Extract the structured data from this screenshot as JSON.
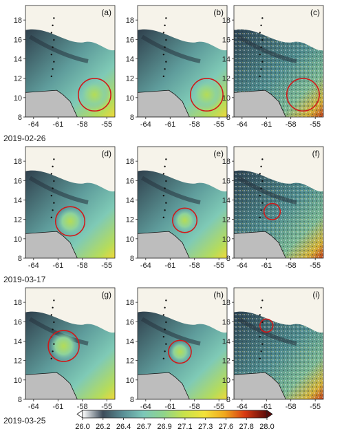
{
  "figure": {
    "x_ticks": [
      "-64",
      "-61",
      "-58",
      "-55"
    ],
    "y_ticks": [
      "18",
      "16",
      "14",
      "12",
      "10",
      "8"
    ],
    "dates": [
      "2019-02-26",
      "2019-03-17",
      "2019-03-25"
    ],
    "colorbar": {
      "ticks": [
        "26.0",
        "26.2",
        "26.4",
        "26.7",
        "26.9",
        "27.1",
        "27.3",
        "27.6",
        "27.8",
        "28.0"
      ],
      "colors": [
        "#ffffff",
        "#3d4c5a",
        "#5a8f96",
        "#7cc7b9",
        "#8fd48a",
        "#c8e24a",
        "#f2e23a",
        "#f0a81e",
        "#d83a12",
        "#5a0a0a"
      ]
    },
    "panels": [
      {
        "label": "(a)",
        "type": "model",
        "eddy": {
          "lon": -56.5,
          "lat": 10.3,
          "r_deg": 2.0
        }
      },
      {
        "label": "(b)",
        "type": "model",
        "eddy": {
          "lon": -56.5,
          "lat": 10.3,
          "r_deg": 2.0
        }
      },
      {
        "label": "(c)",
        "type": "obs",
        "eddy": {
          "lon": -56.5,
          "lat": 10.3,
          "r_deg": 2.0
        }
      },
      {
        "label": "(d)",
        "type": "model",
        "eddy": {
          "lon": -59.5,
          "lat": 11.8,
          "r_deg": 1.8
        }
      },
      {
        "label": "(e)",
        "type": "model",
        "eddy": {
          "lon": -59.2,
          "lat": 11.9,
          "r_deg": 1.5
        }
      },
      {
        "label": "(f)",
        "type": "obs",
        "eddy": {
          "lon": -60.3,
          "lat": 12.8,
          "r_deg": 1.0
        }
      },
      {
        "label": "(g)",
        "type": "model",
        "eddy": {
          "lon": -60.3,
          "lat": 13.5,
          "r_deg": 1.9
        }
      },
      {
        "label": "(h)",
        "type": "model",
        "eddy": {
          "lon": -59.8,
          "lat": 12.9,
          "r_deg": 1.4
        }
      },
      {
        "label": "(i)",
        "type": "obs",
        "eddy": {
          "lon": -61.0,
          "lat": 15.6,
          "r_deg": 0.8
        }
      }
    ]
  }
}
